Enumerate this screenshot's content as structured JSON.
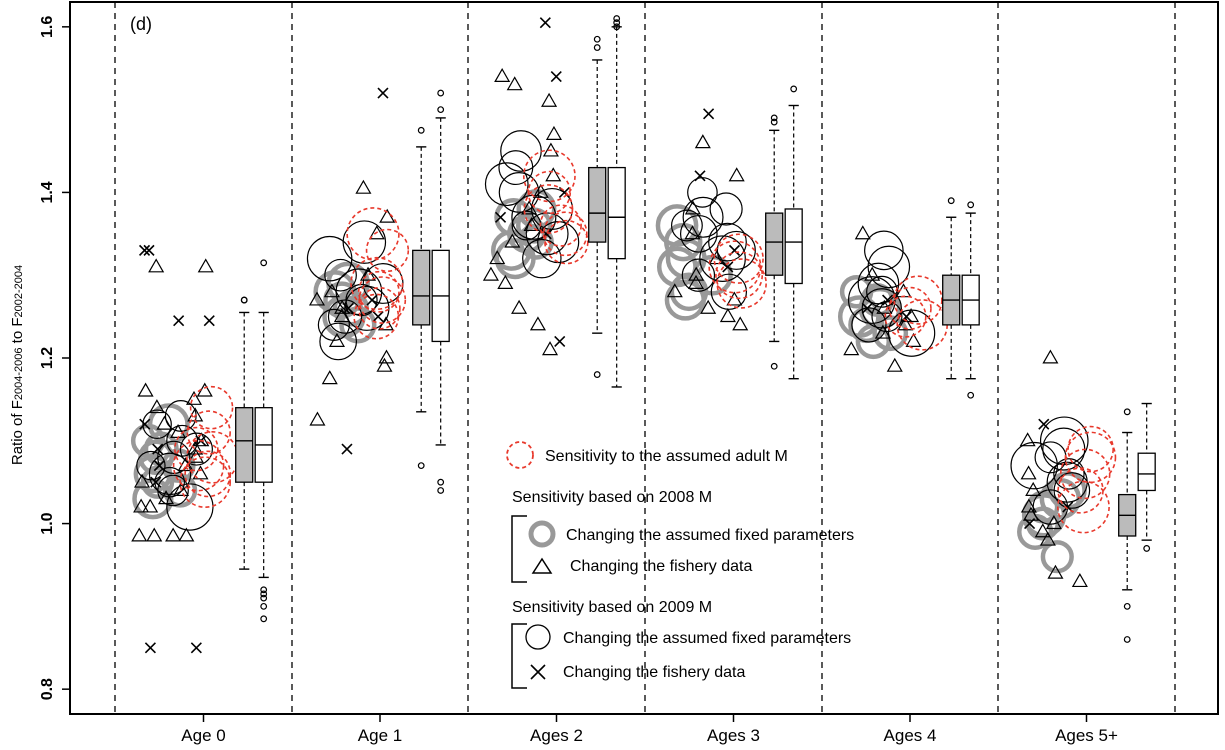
{
  "chart_data": {
    "type": "scatter",
    "panel_label": "(d)",
    "ylabel": {
      "prefix": "Ratio of F",
      "sub1": "2004-2006",
      "mid": " to F",
      "sub2": "2002-2004"
    },
    "ylim": [
      0.77,
      1.63
    ],
    "yticks": [
      0.8,
      1.0,
      1.2,
      1.4,
      1.6
    ],
    "ytick_labels": [
      "0.8",
      "1.0",
      "1.2",
      "1.4",
      "1.6"
    ],
    "categories": [
      "Age 0",
      "Age 1",
      "Ages 2",
      "Ages 3",
      "Ages 4",
      "Ages 5+"
    ],
    "colors": {
      "adult_m": "#e8392c",
      "fixed_2008": "#999999",
      "black": "#000000",
      "box_fill_2008": "#bbbbbb"
    },
    "legend": {
      "adult_m_label": "Sensitivity to the assumed adult M",
      "group_2008_title": "Sensitivity based on 2008 M",
      "group_2008_fixed": "Changing the assumed fixed parameters",
      "group_2008_fishery": "Changing the fishery data",
      "group_2009_title": "Sensitivity based on 2009 M",
      "group_2009_fixed": "Changing the assumed fixed parameters",
      "group_2009_fishery": "Changing the fishery data"
    },
    "groups": [
      {
        "category": "Age 0",
        "fixed_2008": [
          1.05,
          1.08,
          1.1,
          1.06,
          1.04,
          1.07,
          1.09,
          1.03,
          1.12
        ],
        "fixed_2009": [
          1.06,
          1.1,
          1.08,
          1.04,
          1.12,
          1.07,
          1.05,
          1.09,
          1.13,
          1.02
        ],
        "fishery_2008": [
          1.16,
          1.15,
          1.14,
          1.12,
          1.1,
          1.08,
          1.07,
          1.05,
          1.04,
          1.03,
          1.02,
          1.06,
          1.09,
          1.11,
          1.13,
          1.31,
          1.31,
          0.985,
          0.985,
          0.985,
          0.985,
          1.02,
          1.16
        ],
        "fishery_2009": [
          1.33,
          1.33,
          1.245,
          1.245,
          0.85,
          0.85,
          1.12,
          1.07,
          1.05,
          1.09,
          1.1
        ],
        "adult_m": [
          1.05,
          1.07,
          1.09,
          1.11,
          1.14,
          1.06,
          1.08
        ],
        "box_2008": {
          "whislo": 0.945,
          "q1": 1.05,
          "med": 1.1,
          "q3": 1.14,
          "whishi": 1.255,
          "fliers": [
            1.27,
            1.27
          ]
        },
        "box_2009": {
          "whislo": 0.935,
          "q1": 1.05,
          "med": 1.095,
          "q3": 1.14,
          "whishi": 1.255,
          "fliers": [
            1.315,
            0.92,
            0.91,
            0.9,
            0.885,
            0.915
          ]
        }
      },
      {
        "category": "Age 1",
        "fixed_2008": [
          1.28,
          1.27,
          1.26,
          1.25,
          1.29,
          1.24
        ],
        "fixed_2009": [
          1.34,
          1.3,
          1.25,
          1.27,
          1.29,
          1.22,
          1.32,
          1.26,
          1.24,
          1.28
        ],
        "fishery_2008": [
          1.405,
          1.37,
          1.35,
          1.3,
          1.28,
          1.26,
          1.24,
          1.22,
          1.2,
          1.19,
          1.175,
          1.125,
          1.25,
          1.27
        ],
        "fishery_2009": [
          1.52,
          1.09,
          1.26,
          1.25,
          1.27
        ],
        "adult_m": [
          1.25,
          1.27,
          1.29,
          1.33,
          1.35,
          1.26,
          1.28
        ],
        "box_2008": {
          "whislo": 1.135,
          "q1": 1.24,
          "med": 1.275,
          "q3": 1.33,
          "whishi": 1.455,
          "fliers": [
            1.475,
            1.07
          ]
        },
        "box_2009": {
          "whislo": 1.095,
          "q1": 1.22,
          "med": 1.275,
          "q3": 1.33,
          "whishi": 1.49,
          "fliers": [
            1.5,
            1.52,
            1.05,
            1.04
          ]
        }
      },
      {
        "category": "Ages 2",
        "fixed_2008": [
          1.33,
          1.35,
          1.37,
          1.36,
          1.32,
          1.38,
          1.34
        ],
        "fixed_2009": [
          1.45,
          1.41,
          1.38,
          1.36,
          1.34,
          1.32,
          1.4,
          1.43,
          1.35,
          1.37
        ],
        "fishery_2008": [
          1.54,
          1.53,
          1.51,
          1.47,
          1.45,
          1.42,
          1.4,
          1.38,
          1.36,
          1.34,
          1.32,
          1.3,
          1.29,
          1.26,
          1.24,
          1.21
        ],
        "fishery_2009": [
          1.605,
          1.54,
          1.22,
          1.35,
          1.37,
          1.4
        ],
        "adult_m": [
          1.34,
          1.36,
          1.38,
          1.4,
          1.42,
          1.35
        ],
        "box_2008": {
          "whislo": 1.23,
          "q1": 1.34,
          "med": 1.375,
          "q3": 1.43,
          "whishi": 1.56,
          "fliers": [
            1.575,
            1.585,
            1.18
          ]
        },
        "box_2009": {
          "whislo": 1.165,
          "q1": 1.32,
          "med": 1.37,
          "q3": 1.43,
          "whishi": 1.6,
          "fliers": [
            1.6,
            1.605,
            1.61
          ]
        }
      },
      {
        "category": "Ages 3",
        "fixed_2008": [
          1.28,
          1.3,
          1.31,
          1.32,
          1.34,
          1.36,
          1.27
        ],
        "fixed_2009": [
          1.4,
          1.38,
          1.36,
          1.34,
          1.32,
          1.3,
          1.28,
          1.35,
          1.33,
          1.37
        ],
        "fishery_2008": [
          1.46,
          1.42,
          1.38,
          1.35,
          1.32,
          1.3,
          1.29,
          1.28,
          1.27,
          1.26,
          1.25,
          1.24
        ],
        "fishery_2009": [
          1.495,
          1.42,
          1.33,
          1.31
        ],
        "adult_m": [
          1.3,
          1.31,
          1.32,
          1.29
        ],
        "box_2008": {
          "whislo": 1.22,
          "q1": 1.3,
          "med": 1.34,
          "q3": 1.375,
          "whishi": 1.475,
          "fliers": [
            1.485,
            1.49,
            1.19
          ]
        },
        "box_2009": {
          "whislo": 1.175,
          "q1": 1.29,
          "med": 1.34,
          "q3": 1.38,
          "whishi": 1.505,
          "fliers": [
            1.525
          ]
        }
      },
      {
        "category": "Ages 4",
        "fixed_2008": [
          1.24,
          1.25,
          1.26,
          1.27,
          1.23,
          1.28,
          1.22
        ],
        "fixed_2009": [
          1.33,
          1.31,
          1.29,
          1.27,
          1.25,
          1.23,
          1.28,
          1.26,
          1.24
        ],
        "fishery_2008": [
          1.35,
          1.3,
          1.28,
          1.26,
          1.25,
          1.24,
          1.23,
          1.22,
          1.21,
          1.19
        ],
        "fishery_2009": [
          1.26,
          1.25,
          1.27
        ],
        "adult_m": [
          1.24,
          1.26,
          1.27,
          1.25
        ],
        "box_2008": {
          "whislo": 1.175,
          "q1": 1.24,
          "med": 1.27,
          "q3": 1.3,
          "whishi": 1.37,
          "fliers": [
            1.39
          ]
        },
        "box_2009": {
          "whislo": 1.175,
          "q1": 1.24,
          "med": 1.27,
          "q3": 1.3,
          "whishi": 1.375,
          "fliers": [
            1.385,
            1.155
          ]
        }
      },
      {
        "category": "Ages 5+",
        "fixed_2008": [
          1.0,
          1.01,
          1.02,
          1.04,
          0.96,
          0.99,
          1.03
        ],
        "fixed_2009": [
          1.1,
          1.08,
          1.06,
          1.04,
          1.02,
          1.05,
          1.07,
          1.09
        ],
        "fishery_2008": [
          1.2,
          1.1,
          1.06,
          1.04,
          1.02,
          1.01,
          1.0,
          0.99,
          0.98,
          0.94,
          0.93
        ],
        "fishery_2009": [
          1.12,
          1.02,
          1.0
        ],
        "adult_m": [
          1.02,
          1.04,
          1.06,
          1.08,
          1.09
        ],
        "box_2008": {
          "whislo": 0.92,
          "q1": 0.985,
          "med": 1.01,
          "q3": 1.035,
          "whishi": 1.11,
          "fliers": [
            1.135,
            0.9,
            0.86
          ]
        },
        "box_2009": {
          "whislo": 0.98,
          "q1": 1.04,
          "med": 1.06,
          "q3": 1.085,
          "whishi": 1.145,
          "fliers": [
            0.97
          ]
        }
      }
    ]
  }
}
